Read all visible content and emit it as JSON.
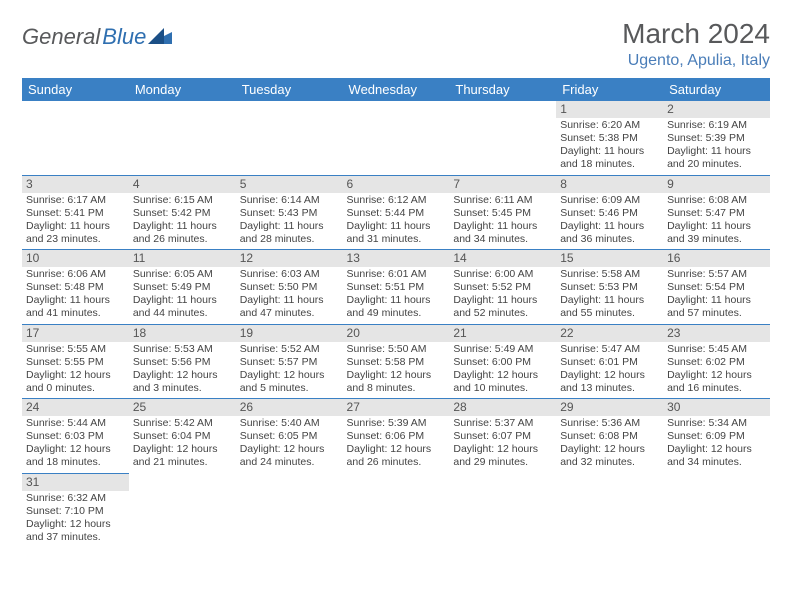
{
  "logo": {
    "dark": "General",
    "blue": "Blue"
  },
  "title": "March 2024",
  "location": "Ugento, Apulia, Italy",
  "weekdays": [
    "Sunday",
    "Monday",
    "Tuesday",
    "Wednesday",
    "Thursday",
    "Friday",
    "Saturday"
  ],
  "colors": {
    "header_bg": "#3a80c4",
    "header_text": "#ffffff",
    "daynum_bg": "#e5e5e5",
    "border": "#3a80c4",
    "title_color": "#58595b",
    "location_color": "#4a7db8"
  },
  "grid": [
    [
      null,
      null,
      null,
      null,
      null,
      {
        "n": "1",
        "sr": "Sunrise: 6:20 AM",
        "ss": "Sunset: 5:38 PM",
        "d1": "Daylight: 11 hours",
        "d2": "and 18 minutes."
      },
      {
        "n": "2",
        "sr": "Sunrise: 6:19 AM",
        "ss": "Sunset: 5:39 PM",
        "d1": "Daylight: 11 hours",
        "d2": "and 20 minutes."
      }
    ],
    [
      {
        "n": "3",
        "sr": "Sunrise: 6:17 AM",
        "ss": "Sunset: 5:41 PM",
        "d1": "Daylight: 11 hours",
        "d2": "and 23 minutes."
      },
      {
        "n": "4",
        "sr": "Sunrise: 6:15 AM",
        "ss": "Sunset: 5:42 PM",
        "d1": "Daylight: 11 hours",
        "d2": "and 26 minutes."
      },
      {
        "n": "5",
        "sr": "Sunrise: 6:14 AM",
        "ss": "Sunset: 5:43 PM",
        "d1": "Daylight: 11 hours",
        "d2": "and 28 minutes."
      },
      {
        "n": "6",
        "sr": "Sunrise: 6:12 AM",
        "ss": "Sunset: 5:44 PM",
        "d1": "Daylight: 11 hours",
        "d2": "and 31 minutes."
      },
      {
        "n": "7",
        "sr": "Sunrise: 6:11 AM",
        "ss": "Sunset: 5:45 PM",
        "d1": "Daylight: 11 hours",
        "d2": "and 34 minutes."
      },
      {
        "n": "8",
        "sr": "Sunrise: 6:09 AM",
        "ss": "Sunset: 5:46 PM",
        "d1": "Daylight: 11 hours",
        "d2": "and 36 minutes."
      },
      {
        "n": "9",
        "sr": "Sunrise: 6:08 AM",
        "ss": "Sunset: 5:47 PM",
        "d1": "Daylight: 11 hours",
        "d2": "and 39 minutes."
      }
    ],
    [
      {
        "n": "10",
        "sr": "Sunrise: 6:06 AM",
        "ss": "Sunset: 5:48 PM",
        "d1": "Daylight: 11 hours",
        "d2": "and 41 minutes."
      },
      {
        "n": "11",
        "sr": "Sunrise: 6:05 AM",
        "ss": "Sunset: 5:49 PM",
        "d1": "Daylight: 11 hours",
        "d2": "and 44 minutes."
      },
      {
        "n": "12",
        "sr": "Sunrise: 6:03 AM",
        "ss": "Sunset: 5:50 PM",
        "d1": "Daylight: 11 hours",
        "d2": "and 47 minutes."
      },
      {
        "n": "13",
        "sr": "Sunrise: 6:01 AM",
        "ss": "Sunset: 5:51 PM",
        "d1": "Daylight: 11 hours",
        "d2": "and 49 minutes."
      },
      {
        "n": "14",
        "sr": "Sunrise: 6:00 AM",
        "ss": "Sunset: 5:52 PM",
        "d1": "Daylight: 11 hours",
        "d2": "and 52 minutes."
      },
      {
        "n": "15",
        "sr": "Sunrise: 5:58 AM",
        "ss": "Sunset: 5:53 PM",
        "d1": "Daylight: 11 hours",
        "d2": "and 55 minutes."
      },
      {
        "n": "16",
        "sr": "Sunrise: 5:57 AM",
        "ss": "Sunset: 5:54 PM",
        "d1": "Daylight: 11 hours",
        "d2": "and 57 minutes."
      }
    ],
    [
      {
        "n": "17",
        "sr": "Sunrise: 5:55 AM",
        "ss": "Sunset: 5:55 PM",
        "d1": "Daylight: 12 hours",
        "d2": "and 0 minutes."
      },
      {
        "n": "18",
        "sr": "Sunrise: 5:53 AM",
        "ss": "Sunset: 5:56 PM",
        "d1": "Daylight: 12 hours",
        "d2": "and 3 minutes."
      },
      {
        "n": "19",
        "sr": "Sunrise: 5:52 AM",
        "ss": "Sunset: 5:57 PM",
        "d1": "Daylight: 12 hours",
        "d2": "and 5 minutes."
      },
      {
        "n": "20",
        "sr": "Sunrise: 5:50 AM",
        "ss": "Sunset: 5:58 PM",
        "d1": "Daylight: 12 hours",
        "d2": "and 8 minutes."
      },
      {
        "n": "21",
        "sr": "Sunrise: 5:49 AM",
        "ss": "Sunset: 6:00 PM",
        "d1": "Daylight: 12 hours",
        "d2": "and 10 minutes."
      },
      {
        "n": "22",
        "sr": "Sunrise: 5:47 AM",
        "ss": "Sunset: 6:01 PM",
        "d1": "Daylight: 12 hours",
        "d2": "and 13 minutes."
      },
      {
        "n": "23",
        "sr": "Sunrise: 5:45 AM",
        "ss": "Sunset: 6:02 PM",
        "d1": "Daylight: 12 hours",
        "d2": "and 16 minutes."
      }
    ],
    [
      {
        "n": "24",
        "sr": "Sunrise: 5:44 AM",
        "ss": "Sunset: 6:03 PM",
        "d1": "Daylight: 12 hours",
        "d2": "and 18 minutes."
      },
      {
        "n": "25",
        "sr": "Sunrise: 5:42 AM",
        "ss": "Sunset: 6:04 PM",
        "d1": "Daylight: 12 hours",
        "d2": "and 21 minutes."
      },
      {
        "n": "26",
        "sr": "Sunrise: 5:40 AM",
        "ss": "Sunset: 6:05 PM",
        "d1": "Daylight: 12 hours",
        "d2": "and 24 minutes."
      },
      {
        "n": "27",
        "sr": "Sunrise: 5:39 AM",
        "ss": "Sunset: 6:06 PM",
        "d1": "Daylight: 12 hours",
        "d2": "and 26 minutes."
      },
      {
        "n": "28",
        "sr": "Sunrise: 5:37 AM",
        "ss": "Sunset: 6:07 PM",
        "d1": "Daylight: 12 hours",
        "d2": "and 29 minutes."
      },
      {
        "n": "29",
        "sr": "Sunrise: 5:36 AM",
        "ss": "Sunset: 6:08 PM",
        "d1": "Daylight: 12 hours",
        "d2": "and 32 minutes."
      },
      {
        "n": "30",
        "sr": "Sunrise: 5:34 AM",
        "ss": "Sunset: 6:09 PM",
        "d1": "Daylight: 12 hours",
        "d2": "and 34 minutes."
      }
    ],
    [
      {
        "n": "31",
        "sr": "Sunrise: 6:32 AM",
        "ss": "Sunset: 7:10 PM",
        "d1": "Daylight: 12 hours",
        "d2": "and 37 minutes."
      },
      null,
      null,
      null,
      null,
      null,
      null
    ]
  ]
}
